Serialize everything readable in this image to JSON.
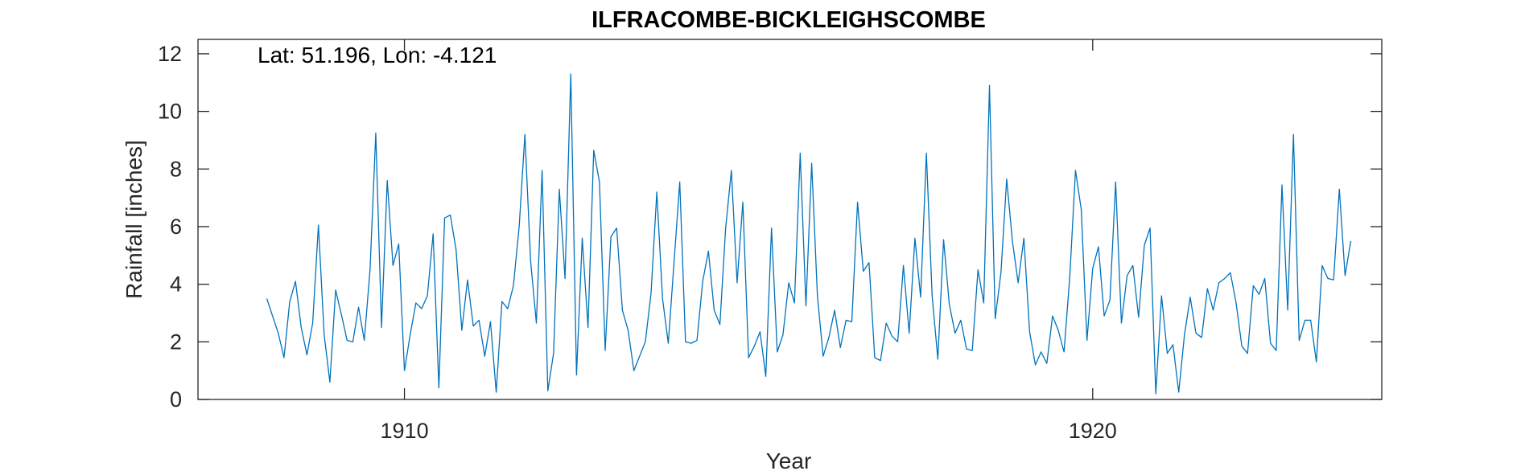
{
  "chart_data": {
    "type": "line",
    "title": "ILFRACOMBE-BICKLEIGHSCOMBE",
    "xlabel": "Year",
    "ylabel": "Rainfall [inches]",
    "annotation": "Lat: 51.196, Lon: -4.121",
    "xlim": [
      1907.0,
      1924.2
    ],
    "ylim": [
      0,
      12.5
    ],
    "xticks": [
      1910,
      1920
    ],
    "yticks": [
      0,
      2,
      4,
      6,
      8,
      10,
      12
    ],
    "grid": false,
    "line_color": "#0072BD",
    "series": [
      {
        "x_start": 1908.0,
        "x_step": 0.0833333,
        "values": [
          3.5,
          2.9,
          2.3,
          1.45,
          3.4,
          4.1,
          2.5,
          1.55,
          2.65,
          6.05,
          2.25,
          0.6,
          3.8,
          2.95,
          2.05,
          2.0,
          3.2,
          2.05,
          4.5,
          9.25,
          2.5,
          7.6,
          4.65,
          5.4,
          1.0,
          2.25,
          3.35,
          3.15,
          3.6,
          5.75,
          0.4,
          6.3,
          6.4,
          5.2,
          2.4,
          4.15,
          2.55,
          2.75,
          1.5,
          2.7,
          0.25,
          3.4,
          3.15,
          3.95,
          6.0,
          9.2,
          4.8,
          2.65,
          7.95,
          0.3,
          1.6,
          7.3,
          4.2,
          11.3,
          0.85,
          5.6,
          2.5,
          8.65,
          7.55,
          1.7,
          5.65,
          5.95,
          3.1,
          2.4,
          1.0,
          1.5,
          2.0,
          3.7,
          7.2,
          3.5,
          1.95,
          4.75,
          7.55,
          2.0,
          1.95,
          2.05,
          4.1,
          5.15,
          3.1,
          2.6,
          5.95,
          7.95,
          4.05,
          6.85,
          1.45,
          1.85,
          2.35,
          0.8,
          5.95,
          1.65,
          2.25,
          4.05,
          3.35,
          8.55,
          3.25,
          8.2,
          3.6,
          1.5,
          2.15,
          3.1,
          1.8,
          2.75,
          2.7,
          6.85,
          4.45,
          4.75,
          1.45,
          1.35,
          2.65,
          2.2,
          2.0,
          4.65,
          2.3,
          5.6,
          3.55,
          8.55,
          3.6,
          1.4,
          5.55,
          3.3,
          2.3,
          2.75,
          1.75,
          1.7,
          4.5,
          3.35,
          10.9,
          2.8,
          4.4,
          7.65,
          5.5,
          4.05,
          5.6,
          2.35,
          1.2,
          1.65,
          1.25,
          2.9,
          2.4,
          1.65,
          4.25,
          7.95,
          6.6,
          2.05,
          4.55,
          5.3,
          2.9,
          3.45,
          7.55,
          2.65,
          4.3,
          4.65,
          2.85,
          5.35,
          5.95,
          0.2,
          3.6,
          1.6,
          1.9,
          0.25,
          2.25,
          3.55,
          2.3,
          2.15,
          3.85,
          3.1,
          4.05,
          4.2,
          4.4,
          3.35,
          1.85,
          1.6,
          3.95,
          3.65,
          4.2,
          1.95,
          1.7,
          7.45,
          3.1,
          9.2,
          2.05,
          2.75,
          2.75,
          1.3,
          4.65,
          4.2,
          4.15,
          7.3,
          4.3,
          5.5
        ]
      }
    ]
  }
}
